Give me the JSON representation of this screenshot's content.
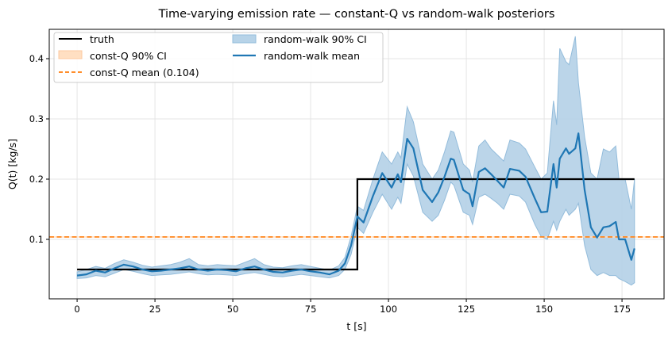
{
  "chart_data": {
    "type": "line",
    "title": "Time-varying emission rate — constant-Q vs random-walk posteriors",
    "xlabel": "t [s]",
    "ylabel": "Q(t) [kg/s]",
    "xlim": [
      -8.95,
      188.5
    ],
    "ylim": [
      0.0013,
      0.4487
    ],
    "xticks": [
      0,
      25,
      50,
      75,
      100,
      125,
      150,
      175
    ],
    "yticks": [
      0.1,
      0.2,
      0.3,
      0.4
    ],
    "ytick_labels": [
      "0.1",
      "0.2",
      "0.3",
      "0.4"
    ],
    "grid": true,
    "legend_placement": "top-left",
    "legend": [
      "truth",
      "const-Q 90% CI",
      "const-Q mean (0.104)",
      "random-walk 90% CI",
      "random-walk mean"
    ],
    "colors": {
      "truth": "#000000",
      "constq": "#ff7f0e",
      "constq_ci": "#ffdfc2",
      "rw": "#1f77b4",
      "rw_ci": "#b7d3e8"
    },
    "truth": {
      "x": [
        0,
        90,
        90,
        179
      ],
      "y": [
        0.05,
        0.05,
        0.2,
        0.2
      ]
    },
    "constq_mean": 0.104,
    "rw": {
      "t": [
        0,
        3,
        6,
        9,
        12,
        15,
        18,
        21,
        24,
        27,
        30,
        33,
        36,
        39,
        42,
        45,
        48,
        51,
        54,
        57,
        60,
        63,
        66,
        69,
        72,
        75,
        78,
        81,
        84,
        86,
        88,
        90,
        92,
        95,
        98,
        101,
        103,
        104,
        106,
        108,
        111,
        114,
        116,
        118,
        120,
        121,
        124,
        126,
        127,
        129,
        131,
        133,
        135,
        137,
        139,
        142,
        144,
        147,
        149,
        151,
        153,
        154,
        155,
        157,
        158,
        160,
        161,
        163,
        165,
        167,
        169,
        171,
        173,
        174,
        176,
        178,
        179
      ],
      "mean": [
        0.04,
        0.042,
        0.048,
        0.045,
        0.052,
        0.058,
        0.055,
        0.05,
        0.047,
        0.048,
        0.05,
        0.052,
        0.055,
        0.05,
        0.048,
        0.05,
        0.049,
        0.047,
        0.052,
        0.055,
        0.05,
        0.046,
        0.045,
        0.048,
        0.05,
        0.047,
        0.045,
        0.042,
        0.048,
        0.06,
        0.09,
        0.138,
        0.128,
        0.172,
        0.21,
        0.186,
        0.208,
        0.195,
        0.267,
        0.251,
        0.182,
        0.162,
        0.178,
        0.204,
        0.234,
        0.232,
        0.182,
        0.175,
        0.155,
        0.212,
        0.218,
        0.208,
        0.197,
        0.186,
        0.217,
        0.214,
        0.204,
        0.168,
        0.145,
        0.146,
        0.225,
        0.186,
        0.234,
        0.251,
        0.242,
        0.251,
        0.276,
        0.182,
        0.12,
        0.103,
        0.12,
        0.122,
        0.129,
        0.1,
        0.1,
        0.066,
        0.085
      ],
      "lo": [
        0.035,
        0.036,
        0.04,
        0.038,
        0.044,
        0.05,
        0.047,
        0.043,
        0.04,
        0.041,
        0.042,
        0.044,
        0.046,
        0.043,
        0.041,
        0.042,
        0.041,
        0.04,
        0.043,
        0.045,
        0.042,
        0.039,
        0.038,
        0.04,
        0.042,
        0.04,
        0.038,
        0.036,
        0.04,
        0.05,
        0.075,
        0.12,
        0.11,
        0.145,
        0.175,
        0.15,
        0.17,
        0.16,
        0.225,
        0.205,
        0.145,
        0.13,
        0.14,
        0.165,
        0.195,
        0.19,
        0.145,
        0.14,
        0.125,
        0.17,
        0.175,
        0.168,
        0.16,
        0.15,
        0.175,
        0.172,
        0.162,
        0.125,
        0.105,
        0.1,
        0.13,
        0.115,
        0.13,
        0.15,
        0.14,
        0.15,
        0.16,
        0.09,
        0.05,
        0.04,
        0.045,
        0.04,
        0.04,
        0.035,
        0.03,
        0.024,
        0.028
      ],
      "hi": [
        0.046,
        0.05,
        0.055,
        0.052,
        0.06,
        0.066,
        0.062,
        0.057,
        0.054,
        0.056,
        0.058,
        0.062,
        0.068,
        0.058,
        0.056,
        0.058,
        0.057,
        0.056,
        0.062,
        0.068,
        0.058,
        0.054,
        0.053,
        0.056,
        0.058,
        0.055,
        0.052,
        0.049,
        0.056,
        0.07,
        0.105,
        0.155,
        0.148,
        0.2,
        0.245,
        0.225,
        0.245,
        0.235,
        0.32,
        0.295,
        0.225,
        0.2,
        0.215,
        0.245,
        0.28,
        0.278,
        0.225,
        0.215,
        0.195,
        0.255,
        0.265,
        0.25,
        0.24,
        0.23,
        0.265,
        0.26,
        0.25,
        0.22,
        0.2,
        0.21,
        0.33,
        0.29,
        0.417,
        0.395,
        0.39,
        0.437,
        0.36,
        0.27,
        0.21,
        0.2,
        0.25,
        0.245,
        0.255,
        0.2,
        0.2,
        0.15,
        0.2
      ]
    }
  }
}
